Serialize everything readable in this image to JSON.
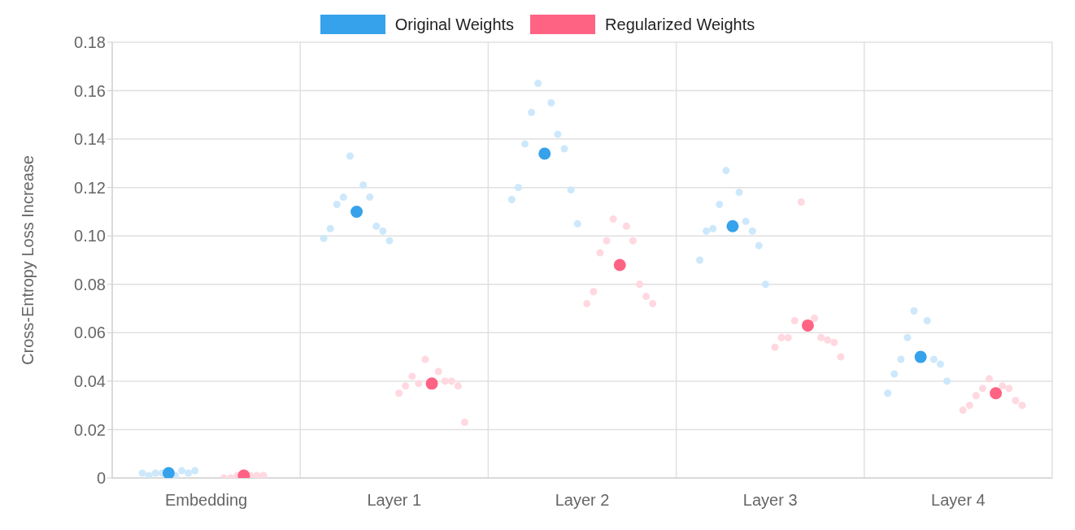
{
  "chart_data": {
    "type": "scatter",
    "ylabel": "Cross-Entropy Loss Increase",
    "categories": [
      "Embedding",
      "Layer 1",
      "Layer 2",
      "Layer 3",
      "Layer 4"
    ],
    "series": [
      {
        "name": "Original Weights",
        "color": "#36a2eb",
        "values": [
          0.002,
          0.11,
          0.134,
          0.104,
          0.05
        ]
      },
      {
        "name": "Regularized Weights",
        "color": "#ff6384",
        "values": [
          0.001,
          0.039,
          0.088,
          0.063,
          0.035
        ]
      },
      {
        "color": "#cde8fb",
        "x": [
          "Embedding",
          "Embedding",
          "Embedding",
          "Embedding",
          "Embedding",
          "Embedding",
          "Embedding",
          "Embedding",
          "Layer 1",
          "Layer 1",
          "Layer 1",
          "Layer 1",
          "Layer 1",
          "Layer 1",
          "Layer 1",
          "Layer 1",
          "Layer 1",
          "Layer 1",
          "Layer 2",
          "Layer 2",
          "Layer 2",
          "Layer 2",
          "Layer 2",
          "Layer 2",
          "Layer 2",
          "Layer 2",
          "Layer 2",
          "Layer 2",
          "Layer 3",
          "Layer 3",
          "Layer 3",
          "Layer 3",
          "Layer 3",
          "Layer 3",
          "Layer 3",
          "Layer 3",
          "Layer 3",
          "Layer 3",
          "Layer 4",
          "Layer 4",
          "Layer 4",
          "Layer 4",
          "Layer 4",
          "Layer 4",
          "Layer 4",
          "Layer 4",
          "Layer 4"
        ],
        "values": [
          0.002,
          0.001,
          0.002,
          0.003,
          0.001,
          0.002,
          0.002,
          0.003,
          0.133,
          0.121,
          0.116,
          0.116,
          0.113,
          0.104,
          0.103,
          0.102,
          0.099,
          0.098,
          0.163,
          0.155,
          0.151,
          0.142,
          0.138,
          0.136,
          0.12,
          0.119,
          0.115,
          0.105,
          0.127,
          0.118,
          0.113,
          0.106,
          0.103,
          0.102,
          0.102,
          0.096,
          0.09,
          0.08,
          0.069,
          0.065,
          0.058,
          0.049,
          0.049,
          0.047,
          0.043,
          0.04,
          0.035
        ]
      },
      {
        "color": "#ffd8e0",
        "x": [
          "Embedding",
          "Embedding",
          "Embedding",
          "Embedding",
          "Embedding",
          "Embedding",
          "Layer 1",
          "Layer 1",
          "Layer 1",
          "Layer 1",
          "Layer 1",
          "Layer 1",
          "Layer 1",
          "Layer 1",
          "Layer 1",
          "Layer 1",
          "Layer 2",
          "Layer 2",
          "Layer 2",
          "Layer 2",
          "Layer 2",
          "Layer 2",
          "Layer 2",
          "Layer 2",
          "Layer 2",
          "Layer 2",
          "Layer 3",
          "Layer 3",
          "Layer 3",
          "Layer 3",
          "Layer 3",
          "Layer 3",
          "Layer 3",
          "Layer 3",
          "Layer 3",
          "Layer 3",
          "Layer 4",
          "Layer 4",
          "Layer 4",
          "Layer 4",
          "Layer 4",
          "Layer 4",
          "Layer 4",
          "Layer 4",
          "Layer 4"
        ],
        "values": [
          0.001,
          0.001,
          0.0,
          0.001,
          0.0,
          0.001,
          0.049,
          0.044,
          0.039,
          0.04,
          0.042,
          0.04,
          0.038,
          0.038,
          0.035,
          0.023,
          0.107,
          0.104,
          0.098,
          0.098,
          0.093,
          0.08,
          0.077,
          0.075,
          0.072,
          0.072,
          0.114,
          0.066,
          0.065,
          0.058,
          0.058,
          0.057,
          0.058,
          0.056,
          0.054,
          0.05,
          0.041,
          0.038,
          0.037,
          0.037,
          0.034,
          0.032,
          0.03,
          0.03,
          0.028
        ]
      }
    ],
    "ylim": [
      0,
      0.18
    ],
    "yticks": [
      0,
      0.02,
      0.04,
      0.06,
      0.08,
      {
        "value": 0.1,
        "label": "0.10"
      },
      0.12,
      0.14,
      0.16,
      0.18
    ],
    "grid": true,
    "legend": "top",
    "marker": "circle"
  }
}
